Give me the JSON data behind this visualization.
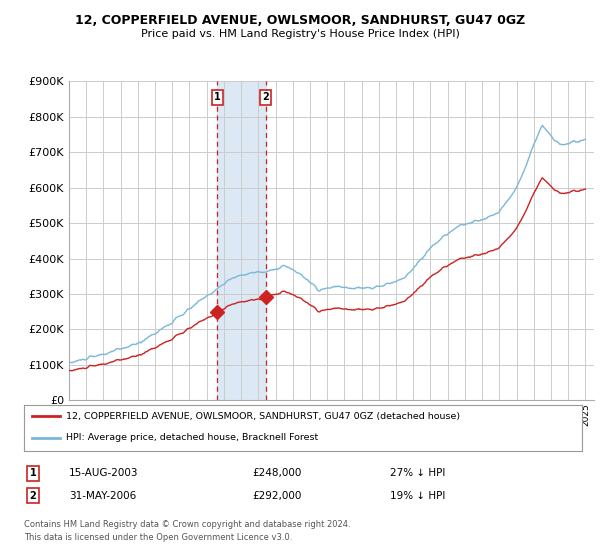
{
  "title": "12, COPPERFIELD AVENUE, OWLSMOOR, SANDHURST, GU47 0GZ",
  "subtitle": "Price paid vs. HM Land Registry's House Price Index (HPI)",
  "ylabel_ticks": [
    "£0",
    "£100K",
    "£200K",
    "£300K",
    "£400K",
    "£500K",
    "£600K",
    "£700K",
    "£800K",
    "£900K"
  ],
  "ytick_values": [
    0,
    100000,
    200000,
    300000,
    400000,
    500000,
    600000,
    700000,
    800000,
    900000
  ],
  "ylim": [
    0,
    900000
  ],
  "xlim_start": 1995.0,
  "xlim_end": 2025.5,
  "sale1_date": 2003.62,
  "sale1_price": 248000,
  "sale1_label": "15-AUG-2003",
  "sale1_value_label": "£248,000",
  "sale1_pct_label": "27% ↓ HPI",
  "sale2_date": 2006.42,
  "sale2_price": 292000,
  "sale2_label": "31-MAY-2006",
  "sale2_value_label": "£292,000",
  "sale2_pct_label": "19% ↓ HPI",
  "hpi_color": "#7ab8d9",
  "price_color": "#cc2222",
  "highlight_bg": "#dce9f5",
  "legend_label1": "12, COPPERFIELD AVENUE, OWLSMOOR, SANDHURST, GU47 0GZ (detached house)",
  "legend_label2": "HPI: Average price, detached house, Bracknell Forest",
  "footer1": "Contains HM Land Registry data © Crown copyright and database right 2024.",
  "footer2": "This data is licensed under the Open Government Licence v3.0.",
  "background_color": "#ffffff",
  "grid_color": "#cccccc"
}
